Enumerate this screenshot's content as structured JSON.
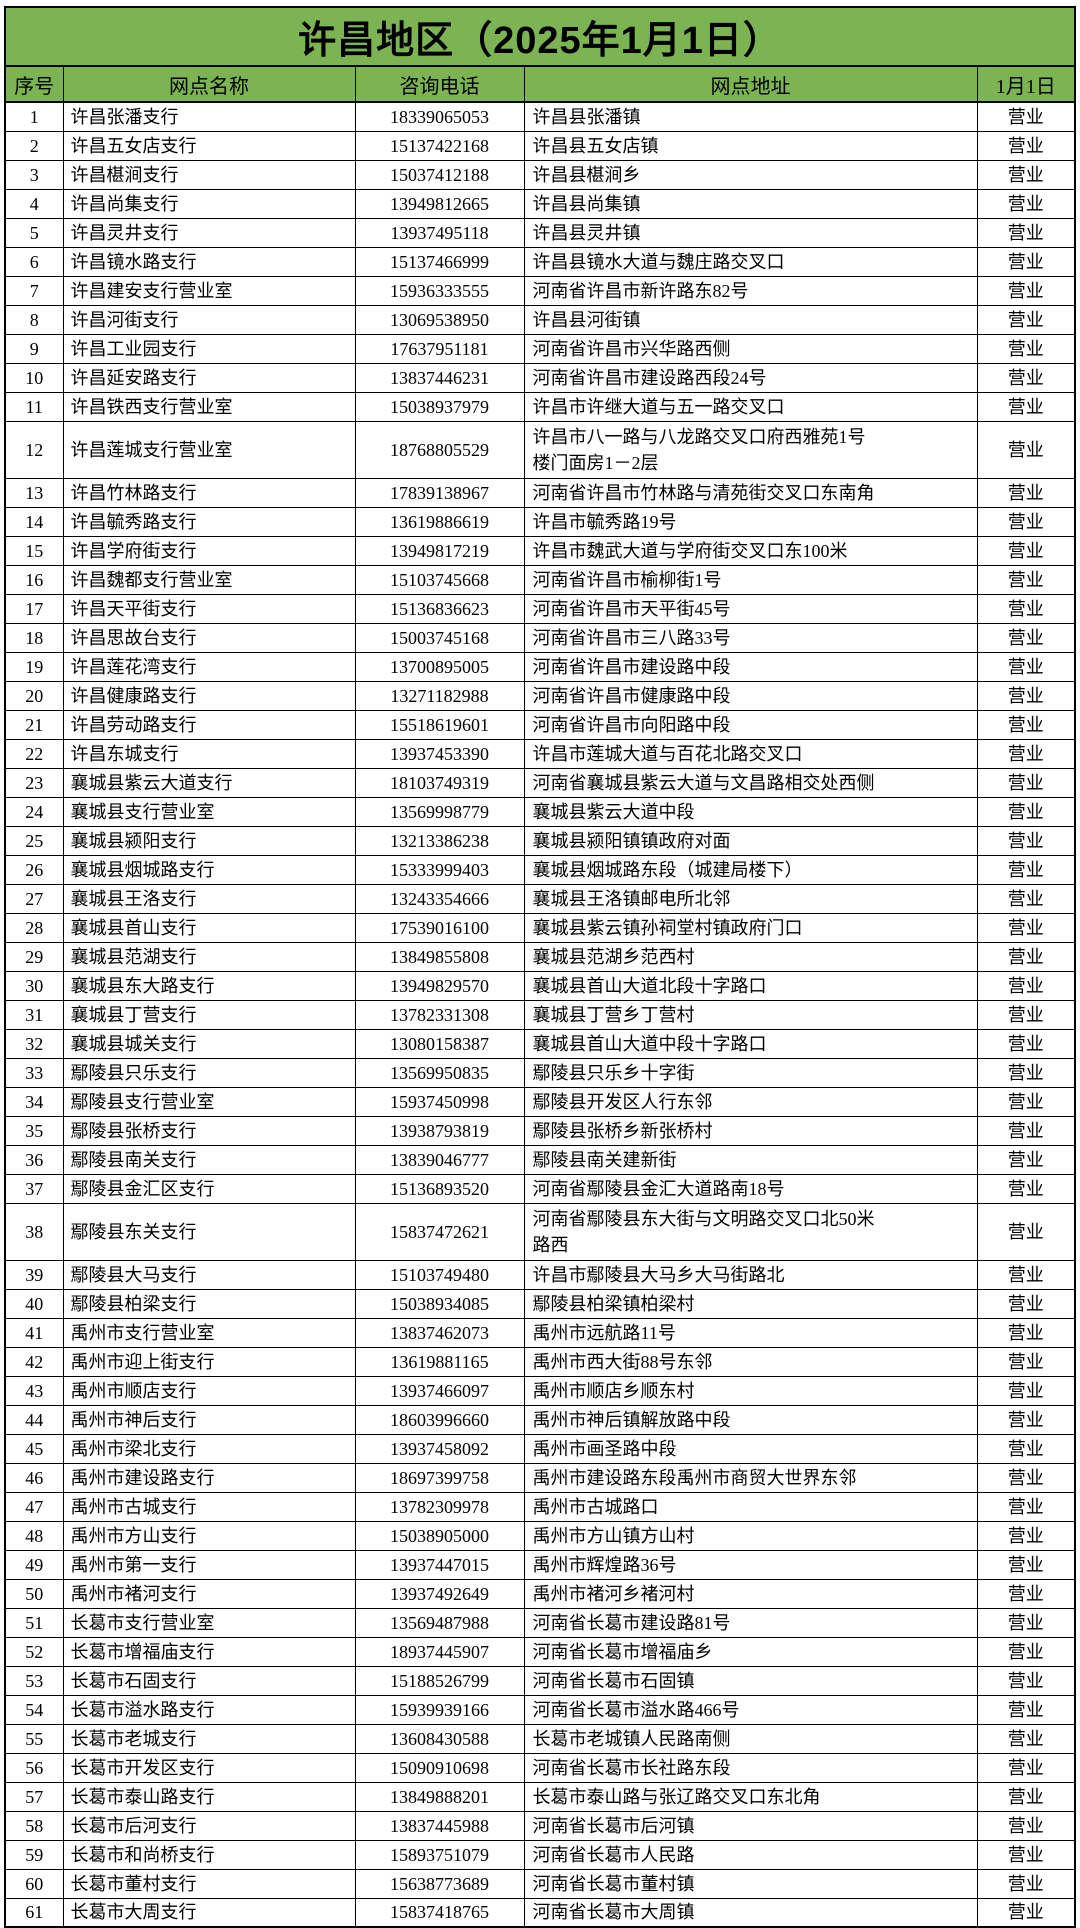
{
  "title": "许昌地区（2025年1月1日）",
  "colors": {
    "header_green": "#7CB353",
    "border": "#000000",
    "text": "#000000"
  },
  "columns": [
    "序号",
    "网点名称",
    "咨询电话",
    "网点地址",
    "1月1日"
  ],
  "rows": [
    {
      "no": "1",
      "name": "许昌张潘支行",
      "phone": "18339065053",
      "address": "许昌县张潘镇",
      "status": "营业"
    },
    {
      "no": "2",
      "name": "许昌五女店支行",
      "phone": "15137422168",
      "address": "许昌县五女店镇",
      "status": "营业"
    },
    {
      "no": "3",
      "name": "许昌椹涧支行",
      "phone": "15037412188",
      "address": "许昌县椹涧乡",
      "status": "营业"
    },
    {
      "no": "4",
      "name": "许昌尚集支行",
      "phone": "13949812665",
      "address": "许昌县尚集镇",
      "status": "营业"
    },
    {
      "no": "5",
      "name": "许昌灵井支行",
      "phone": "13937495118",
      "address": "许昌县灵井镇",
      "status": "营业"
    },
    {
      "no": "6",
      "name": "许昌镜水路支行",
      "phone": "15137466999",
      "address": "许昌县镜水大道与魏庄路交叉口",
      "status": "营业"
    },
    {
      "no": "7",
      "name": "许昌建安支行营业室",
      "phone": "15936333555",
      "address": "河南省许昌市新许路东82号",
      "status": "营业"
    },
    {
      "no": "8",
      "name": "许昌河街支行",
      "phone": "13069538950",
      "address": "许昌县河街镇",
      "status": "营业"
    },
    {
      "no": "9",
      "name": "许昌工业园支行",
      "phone": "17637951181",
      "address": "河南省许昌市兴华路西侧",
      "status": "营业"
    },
    {
      "no": "10",
      "name": "许昌延安路支行",
      "phone": "13837446231",
      "address": "河南省许昌市建设路西段24号",
      "status": "营业"
    },
    {
      "no": "11",
      "name": "许昌铁西支行营业室",
      "phone": "15038937979",
      "address": "许昌市许继大道与五一路交叉口",
      "status": "营业"
    },
    {
      "no": "12",
      "name": "许昌莲城支行营业室",
      "phone": "18768805529",
      "address": "许昌市八一路与八龙路交叉口府西雅苑1号\n楼门面房1－2层",
      "status": "营业",
      "tall": true
    },
    {
      "no": "13",
      "name": "许昌竹林路支行",
      "phone": "17839138967",
      "address": "河南省许昌市竹林路与清苑街交叉口东南角",
      "status": "营业"
    },
    {
      "no": "14",
      "name": "许昌毓秀路支行",
      "phone": "13619886619",
      "address": "许昌市毓秀路19号",
      "status": "营业"
    },
    {
      "no": "15",
      "name": "许昌学府街支行",
      "phone": "13949817219",
      "address": "许昌市魏武大道与学府街交叉口东100米",
      "status": "营业"
    },
    {
      "no": "16",
      "name": "许昌魏都支行营业室",
      "phone": "15103745668",
      "address": "河南省许昌市榆柳街1号",
      "status": "营业"
    },
    {
      "no": "17",
      "name": "许昌天平街支行",
      "phone": "15136836623",
      "address": "河南省许昌市天平街45号",
      "status": "营业"
    },
    {
      "no": "18",
      "name": "许昌思故台支行",
      "phone": "15003745168",
      "address": "河南省许昌市三八路33号",
      "status": "营业"
    },
    {
      "no": "19",
      "name": "许昌莲花湾支行",
      "phone": "13700895005",
      "address": "河南省许昌市建设路中段",
      "status": "营业"
    },
    {
      "no": "20",
      "name": "许昌健康路支行",
      "phone": "13271182988",
      "address": "河南省许昌市健康路中段",
      "status": "营业"
    },
    {
      "no": "21",
      "name": "许昌劳动路支行",
      "phone": "15518619601",
      "address": "河南省许昌市向阳路中段",
      "status": "营业"
    },
    {
      "no": "22",
      "name": "许昌东城支行",
      "phone": "13937453390",
      "address": "许昌市莲城大道与百花北路交叉口",
      "status": "营业"
    },
    {
      "no": "23",
      "name": "襄城县紫云大道支行",
      "phone": "18103749319",
      "address": "河南省襄城县紫云大道与文昌路相交处西侧",
      "status": "营业"
    },
    {
      "no": "24",
      "name": "襄城县支行营业室",
      "phone": "13569998779",
      "address": "襄城县紫云大道中段",
      "status": "营业"
    },
    {
      "no": "25",
      "name": "襄城县颍阳支行",
      "phone": "13213386238",
      "address": "襄城县颍阳镇镇政府对面",
      "status": "营业"
    },
    {
      "no": "26",
      "name": "襄城县烟城路支行",
      "phone": "15333999403",
      "address": "襄城县烟城路东段（城建局楼下）",
      "status": "营业"
    },
    {
      "no": "27",
      "name": "襄城县王洛支行",
      "phone": "13243354666",
      "address": "襄城县王洛镇邮电所北邻",
      "status": "营业"
    },
    {
      "no": "28",
      "name": "襄城县首山支行",
      "phone": "17539016100",
      "address": "襄城县紫云镇孙祠堂村镇政府门口",
      "status": "营业"
    },
    {
      "no": "29",
      "name": "襄城县范湖支行",
      "phone": "13849855808",
      "address": "襄城县范湖乡范西村",
      "status": "营业"
    },
    {
      "no": "30",
      "name": "襄城县东大路支行",
      "phone": "13949829570",
      "address": "襄城县首山大道北段十字路口",
      "status": "营业"
    },
    {
      "no": "31",
      "name": "襄城县丁营支行",
      "phone": "13782331308",
      "address": "襄城县丁营乡丁营村",
      "status": "营业"
    },
    {
      "no": "32",
      "name": "襄城县城关支行",
      "phone": "13080158387",
      "address": "襄城县首山大道中段十字路口",
      "status": "营业"
    },
    {
      "no": "33",
      "name": "鄢陵县只乐支行",
      "phone": "13569950835",
      "address": "鄢陵县只乐乡十字街",
      "status": "营业"
    },
    {
      "no": "34",
      "name": "鄢陵县支行营业室",
      "phone": "15937450998",
      "address": "鄢陵县开发区人行东邻",
      "status": "营业"
    },
    {
      "no": "35",
      "name": "鄢陵县张桥支行",
      "phone": "13938793819",
      "address": "鄢陵县张桥乡新张桥村",
      "status": "营业"
    },
    {
      "no": "36",
      "name": "鄢陵县南关支行",
      "phone": "13839046777",
      "address": "鄢陵县南关建新街",
      "status": "营业"
    },
    {
      "no": "37",
      "name": "鄢陵县金汇区支行",
      "phone": "15136893520",
      "address": "河南省鄢陵县金汇大道路南18号",
      "status": "营业"
    },
    {
      "no": "38",
      "name": "鄢陵县东关支行",
      "phone": "15837472621",
      "address": "河南省鄢陵县东大街与文明路交叉口北50米\n路西",
      "status": "营业",
      "tall": true
    },
    {
      "no": "39",
      "name": "鄢陵县大马支行",
      "phone": "15103749480",
      "address": "许昌市鄢陵县大马乡大马街路北",
      "status": "营业"
    },
    {
      "no": "40",
      "name": "鄢陵县柏梁支行",
      "phone": "15038934085",
      "address": "鄢陵县柏梁镇柏梁村",
      "status": "营业"
    },
    {
      "no": "41",
      "name": "禹州市支行营业室",
      "phone": "13837462073",
      "address": "禹州市远航路11号",
      "status": "营业"
    },
    {
      "no": "42",
      "name": "禹州市迎上街支行",
      "phone": "13619881165",
      "address": "禹州市西大街88号东邻",
      "status": "营业"
    },
    {
      "no": "43",
      "name": "禹州市顺店支行",
      "phone": "13937466097",
      "address": "禹州市顺店乡顺东村",
      "status": "营业"
    },
    {
      "no": "44",
      "name": "禹州市神后支行",
      "phone": "18603996660",
      "address": "禹州市神后镇解放路中段",
      "status": "营业"
    },
    {
      "no": "45",
      "name": "禹州市梁北支行",
      "phone": "13937458092",
      "address": "禹州市画圣路中段",
      "status": "营业"
    },
    {
      "no": "46",
      "name": "禹州市建设路支行",
      "phone": "18697399758",
      "address": "禹州市建设路东段禹州市商贸大世界东邻",
      "status": "营业"
    },
    {
      "no": "47",
      "name": "禹州市古城支行",
      "phone": "13782309978",
      "address": "禹州市古城路口",
      "status": "营业"
    },
    {
      "no": "48",
      "name": "禹州市方山支行",
      "phone": "15038905000",
      "address": "禹州市方山镇方山村",
      "status": "营业"
    },
    {
      "no": "49",
      "name": "禹州市第一支行",
      "phone": "13937447015",
      "address": "禹州市辉煌路36号",
      "status": "营业"
    },
    {
      "no": "50",
      "name": "禹州市褚河支行",
      "phone": "13937492649",
      "address": "禹州市褚河乡褚河村",
      "status": "营业"
    },
    {
      "no": "51",
      "name": "长葛市支行营业室",
      "phone": "13569487988",
      "address": "河南省长葛市建设路81号",
      "status": "营业"
    },
    {
      "no": "52",
      "name": "长葛市增福庙支行",
      "phone": "18937445907",
      "address": "河南省长葛市增福庙乡",
      "status": "营业"
    },
    {
      "no": "53",
      "name": "长葛市石固支行",
      "phone": "15188526799",
      "address": "河南省长葛市石固镇",
      "status": "营业"
    },
    {
      "no": "54",
      "name": "长葛市溢水路支行",
      "phone": "15939939166",
      "address": "河南省长葛市溢水路466号",
      "status": "营业"
    },
    {
      "no": "55",
      "name": "长葛市老城支行",
      "phone": "13608430588",
      "address": "长葛市老城镇人民路南侧",
      "status": "营业"
    },
    {
      "no": "56",
      "name": "长葛市开发区支行",
      "phone": "15090910698",
      "address": "河南省长葛市长社路东段",
      "status": "营业"
    },
    {
      "no": "57",
      "name": "长葛市泰山路支行",
      "phone": "13849888201",
      "address": "长葛市泰山路与张辽路交叉口东北角",
      "status": "营业"
    },
    {
      "no": "58",
      "name": "长葛市后河支行",
      "phone": "13837445988",
      "address": "河南省长葛市后河镇",
      "status": "营业"
    },
    {
      "no": "59",
      "name": "长葛市和尚桥支行",
      "phone": "15893751079",
      "address": "河南省长葛市人民路",
      "status": "营业"
    },
    {
      "no": "60",
      "name": "长葛市董村支行",
      "phone": "15638773689",
      "address": "河南省长葛市董村镇",
      "status": "营业"
    },
    {
      "no": "61",
      "name": "长葛市大周支行",
      "phone": "15837418765",
      "address": "河南省长葛市大周镇",
      "status": "营业"
    }
  ]
}
